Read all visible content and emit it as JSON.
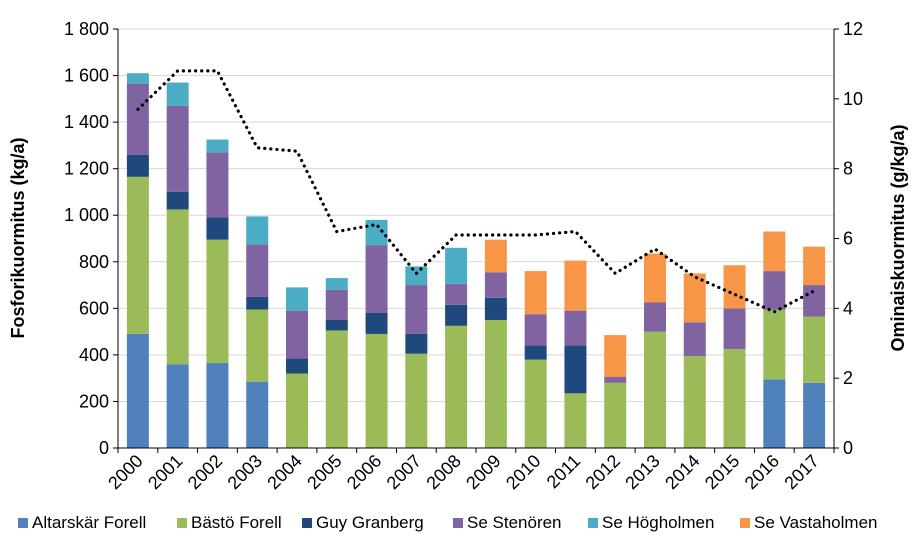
{
  "chart_data": {
    "type": "bar",
    "stacked": true,
    "categories": [
      "2000",
      "2001",
      "2002",
      "2003",
      "2004",
      "2005",
      "2006",
      "2007",
      "2008",
      "2009",
      "2010",
      "2011",
      "2012",
      "2013",
      "2014",
      "2015",
      "2016",
      "2017"
    ],
    "series": [
      {
        "name": "Altarskär Forell",
        "color": "#4F81BD",
        "values": [
          490,
          360,
          365,
          285,
          0,
          0,
          0,
          0,
          0,
          0,
          0,
          0,
          0,
          0,
          0,
          0,
          295,
          280
        ]
      },
      {
        "name": "Bästö Forell",
        "color": "#9BBB59",
        "values": [
          675,
          665,
          530,
          310,
          320,
          505,
          490,
          405,
          525,
          550,
          380,
          235,
          280,
          500,
          395,
          425,
          300,
          285
        ]
      },
      {
        "name": "Guy Granberg",
        "color": "#1F497D",
        "values": [
          95,
          75,
          95,
          55,
          65,
          45,
          90,
          85,
          90,
          95,
          60,
          205,
          0,
          0,
          0,
          0,
          0,
          0
        ]
      },
      {
        "name": "Se Stenören",
        "color": "#8064A2",
        "values": [
          305,
          370,
          280,
          225,
          205,
          130,
          290,
          210,
          90,
          110,
          135,
          150,
          25,
          125,
          145,
          175,
          165,
          135
        ]
      },
      {
        "name": "Se Högholmen",
        "color": "#4BACC6",
        "values": [
          45,
          100,
          55,
          120,
          100,
          50,
          110,
          80,
          155,
          0,
          0,
          0,
          0,
          0,
          0,
          0,
          0,
          0
        ]
      },
      {
        "name": "Se Vastaholmen",
        "color": "#F79646",
        "values": [
          0,
          0,
          0,
          0,
          0,
          0,
          0,
          0,
          0,
          140,
          185,
          215,
          180,
          210,
          210,
          185,
          170,
          165
        ]
      }
    ],
    "line": {
      "name": "Ominaiskuormitus",
      "color": "#000000",
      "style": "dotted",
      "values": [
        9.7,
        10.8,
        10.8,
        8.6,
        8.5,
        6.2,
        6.4,
        5.0,
        6.1,
        6.1,
        6.1,
        6.2,
        5.0,
        5.7,
        4.9,
        4.4,
        3.9,
        4.5
      ]
    },
    "xlabel": "",
    "ylabel": "Fosforikuormitus (kg/a)",
    "y2label": "Ominaiskuormitus (g/kg/a)",
    "ylim": [
      0,
      1800
    ],
    "y2lim": [
      0,
      12
    ],
    "yticks": [
      0,
      200,
      400,
      600,
      800,
      1000,
      1200,
      1400,
      1600,
      1800
    ],
    "ytick_labels": [
      "0",
      "200",
      "400",
      "600",
      "800",
      "1 000",
      "1 200",
      "1 400",
      "1 600",
      "1 800"
    ],
    "y2ticks": [
      0,
      2,
      4,
      6,
      8,
      10,
      12
    ],
    "ytick2_labels": [
      "0",
      "2",
      "4",
      "6",
      "8",
      "10",
      "12"
    ],
    "grid": true,
    "legend_position": "bottom"
  }
}
